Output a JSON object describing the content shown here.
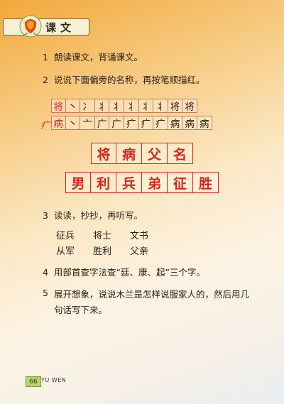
{
  "header": {
    "title": "课文",
    "icon": "flower-icon"
  },
  "items": [
    {
      "num": "1",
      "text": "朗读课文，背诵课文。"
    },
    {
      "num": "2",
      "text": "说说下面偏旁的名称，再按笔顺描红。"
    },
    {
      "num": "3",
      "text": "读读，抄抄，再听写。"
    },
    {
      "num": "4",
      "text": "用部首查字法查“廷、康、起”三个字。"
    },
    {
      "num": "5",
      "text": "展开想象，说说木兰是怎样说服家人的，然后用几句话写下来。"
    }
  ],
  "stroke_rows": [
    {
      "radical_label": "",
      "cells": [
        "将",
        "丶",
        "冫",
        "丬",
        "丬",
        "丬",
        "丬",
        "丬",
        "将",
        "将"
      ]
    },
    {
      "radical_label": "疒",
      "cells": [
        "病",
        "丶",
        "亠",
        "广",
        "广",
        "疒",
        "疒",
        "疒",
        "病",
        "病",
        "病"
      ]
    }
  ],
  "big_words": [
    [
      "将",
      "病",
      "父",
      "名"
    ],
    [
      "男",
      "利",
      "兵",
      "弟",
      "征",
      "胜"
    ]
  ],
  "word_list": [
    [
      "征兵",
      "将士",
      "文书"
    ],
    [
      "从军",
      "胜利",
      "父亲"
    ]
  ],
  "footer": {
    "page_number": "66",
    "label": "YU WEN"
  },
  "colors": {
    "accent_red": "#d7261e",
    "grid_line": "#c87a5c"
  }
}
